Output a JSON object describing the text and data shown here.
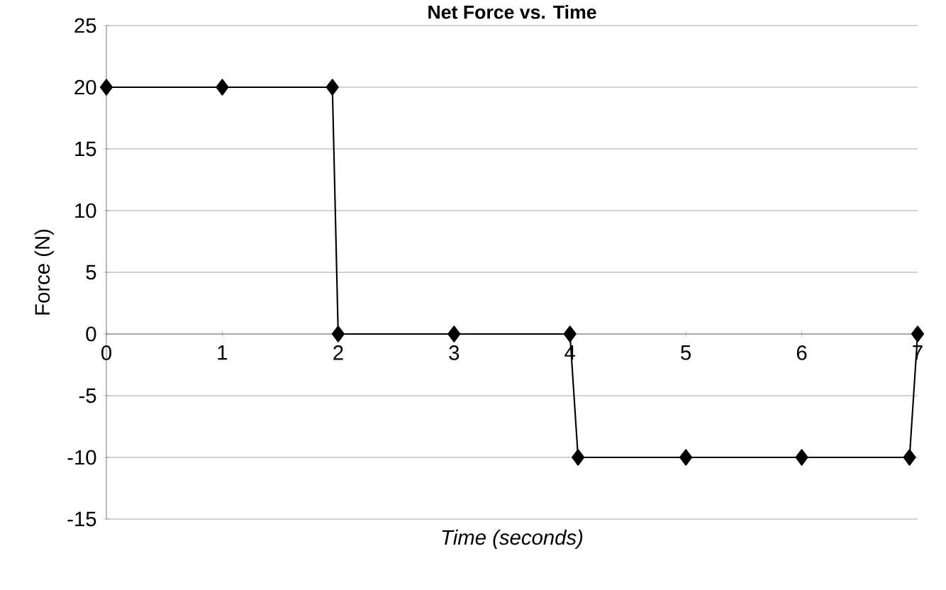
{
  "chart_data": {
    "type": "line",
    "title": "Net Force vs. Time",
    "xlabel": "Time (seconds)",
    "ylabel": "Force (N)",
    "x": [
      0,
      1,
      1.95,
      2,
      3,
      4,
      4.07,
      5,
      6,
      6.93,
      7
    ],
    "series": [
      {
        "color": "#000000",
        "values": [
          20,
          20,
          20,
          0,
          0,
          0,
          -10,
          -10,
          -10,
          -10,
          0
        ]
      }
    ],
    "xlim": [
      0,
      7
    ],
    "xticks": [
      0,
      1,
      2,
      3,
      4,
      5,
      6,
      7
    ],
    "ylim": [
      -15,
      25
    ],
    "yticks": [
      -15,
      -10,
      -5,
      0,
      5,
      10,
      15,
      20,
      25
    ],
    "grid": "y",
    "marker": "diamond",
    "line_style": "solid"
  }
}
